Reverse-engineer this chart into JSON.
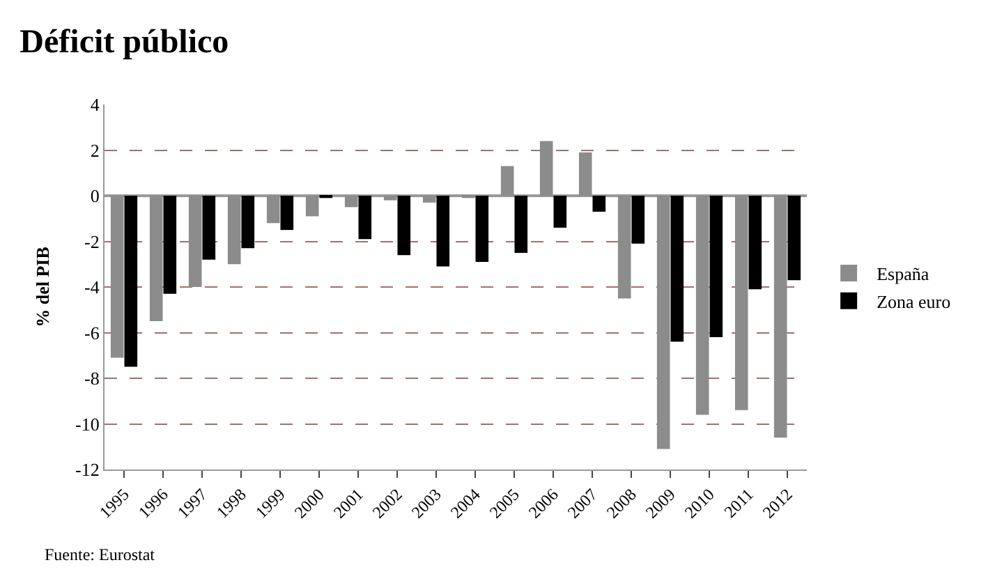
{
  "chart_data": {
    "type": "bar",
    "title": "Déficit público",
    "ylabel": "% del PIB",
    "categories": [
      "1995",
      "1996",
      "1997",
      "1998",
      "1999",
      "2000",
      "2001",
      "2002",
      "2003",
      "2004",
      "2005",
      "2006",
      "2007",
      "2008",
      "2009",
      "2010",
      "2011",
      "2012"
    ],
    "series": [
      {
        "name": "España",
        "color": "#8c8c8c",
        "values": [
          -7.1,
          -5.5,
          -4.0,
          -3.0,
          -1.2,
          -0.9,
          -0.5,
          -0.2,
          -0.3,
          -0.1,
          1.3,
          2.4,
          1.9,
          -4.5,
          -11.1,
          -9.6,
          -9.4,
          -10.6
        ]
      },
      {
        "name": "Zona euro",
        "color": "#000000",
        "values": [
          -7.5,
          -4.3,
          -2.8,
          -2.3,
          -1.5,
          -0.1,
          -1.9,
          -2.6,
          -3.1,
          -2.9,
          -2.5,
          -1.4,
          -0.7,
          -2.1,
          -6.4,
          -6.2,
          -4.1,
          -3.7
        ]
      }
    ],
    "ylim": [
      -12,
      4
    ],
    "yticks": [
      -12,
      -10,
      -8,
      -6,
      -4,
      -2,
      0,
      2,
      4
    ],
    "grid": "y",
    "legend": "right",
    "annotations": [
      "Fuente: Eurostat"
    ]
  }
}
